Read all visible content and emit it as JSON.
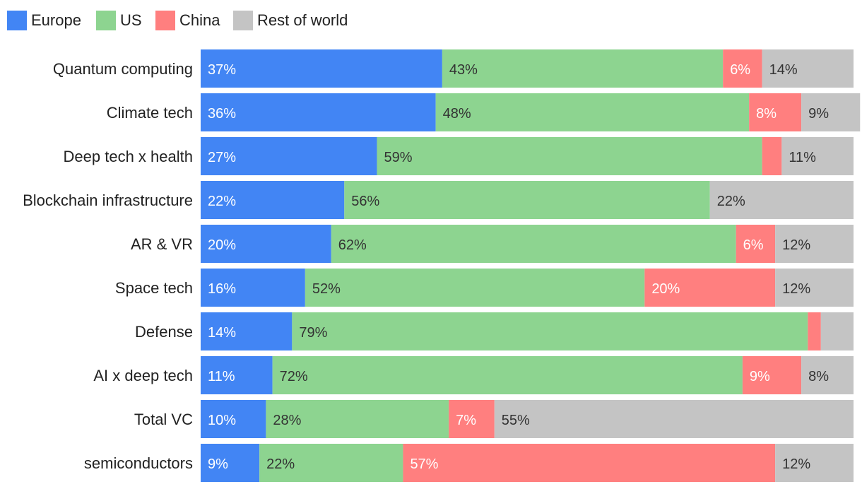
{
  "chart_data": {
    "type": "bar",
    "orientation": "horizontal",
    "stacked": true,
    "normalized_percent": true,
    "legend_position": "top-left",
    "grid": false,
    "xlim": [
      0,
      100
    ],
    "series": [
      {
        "name": "Europe",
        "color": "#4285f4",
        "label_color": "#ffffff",
        "values": [
          37,
          36,
          27,
          22,
          20,
          16,
          14,
          11,
          10,
          9
        ],
        "labels": [
          "37%",
          "36%",
          "27%",
          "22%",
          "20%",
          "16%",
          "14%",
          "11%",
          "10%",
          "9%"
        ]
      },
      {
        "name": "US",
        "color": "#8dd490",
        "label_color": "#333333",
        "values": [
          43,
          48,
          59,
          56,
          62,
          52,
          79,
          72,
          28,
          22
        ],
        "labels": [
          "43%",
          "48%",
          "59%",
          "56%",
          "62%",
          "52%",
          "79%",
          "72%",
          "28%",
          "22%"
        ]
      },
      {
        "name": "China",
        "color": "#ff7f7f",
        "label_color": "#ffffff",
        "values": [
          6,
          8,
          3,
          0,
          6,
          20,
          2,
          9,
          7,
          57
        ],
        "labels": [
          "6%",
          "8%",
          "",
          "",
          "6%",
          "20%",
          "",
          "9%",
          "7%",
          "57%"
        ]
      },
      {
        "name": "Rest of world",
        "color": "#c4c4c4",
        "label_color": "#333333",
        "values": [
          14,
          9,
          11,
          22,
          12,
          12,
          5,
          8,
          55,
          12
        ],
        "labels": [
          "14%",
          "9%",
          "11%",
          "22%",
          "12%",
          "12%",
          "",
          "8%",
          "55%",
          "12%"
        ]
      }
    ],
    "categories": [
      "Quantum computing",
      "Climate tech",
      "Deep tech x health",
      "Blockchain infrastructure",
      "AR & VR",
      "Space tech",
      "Defense",
      "AI x deep tech",
      "Total VC",
      "semiconductors"
    ]
  }
}
